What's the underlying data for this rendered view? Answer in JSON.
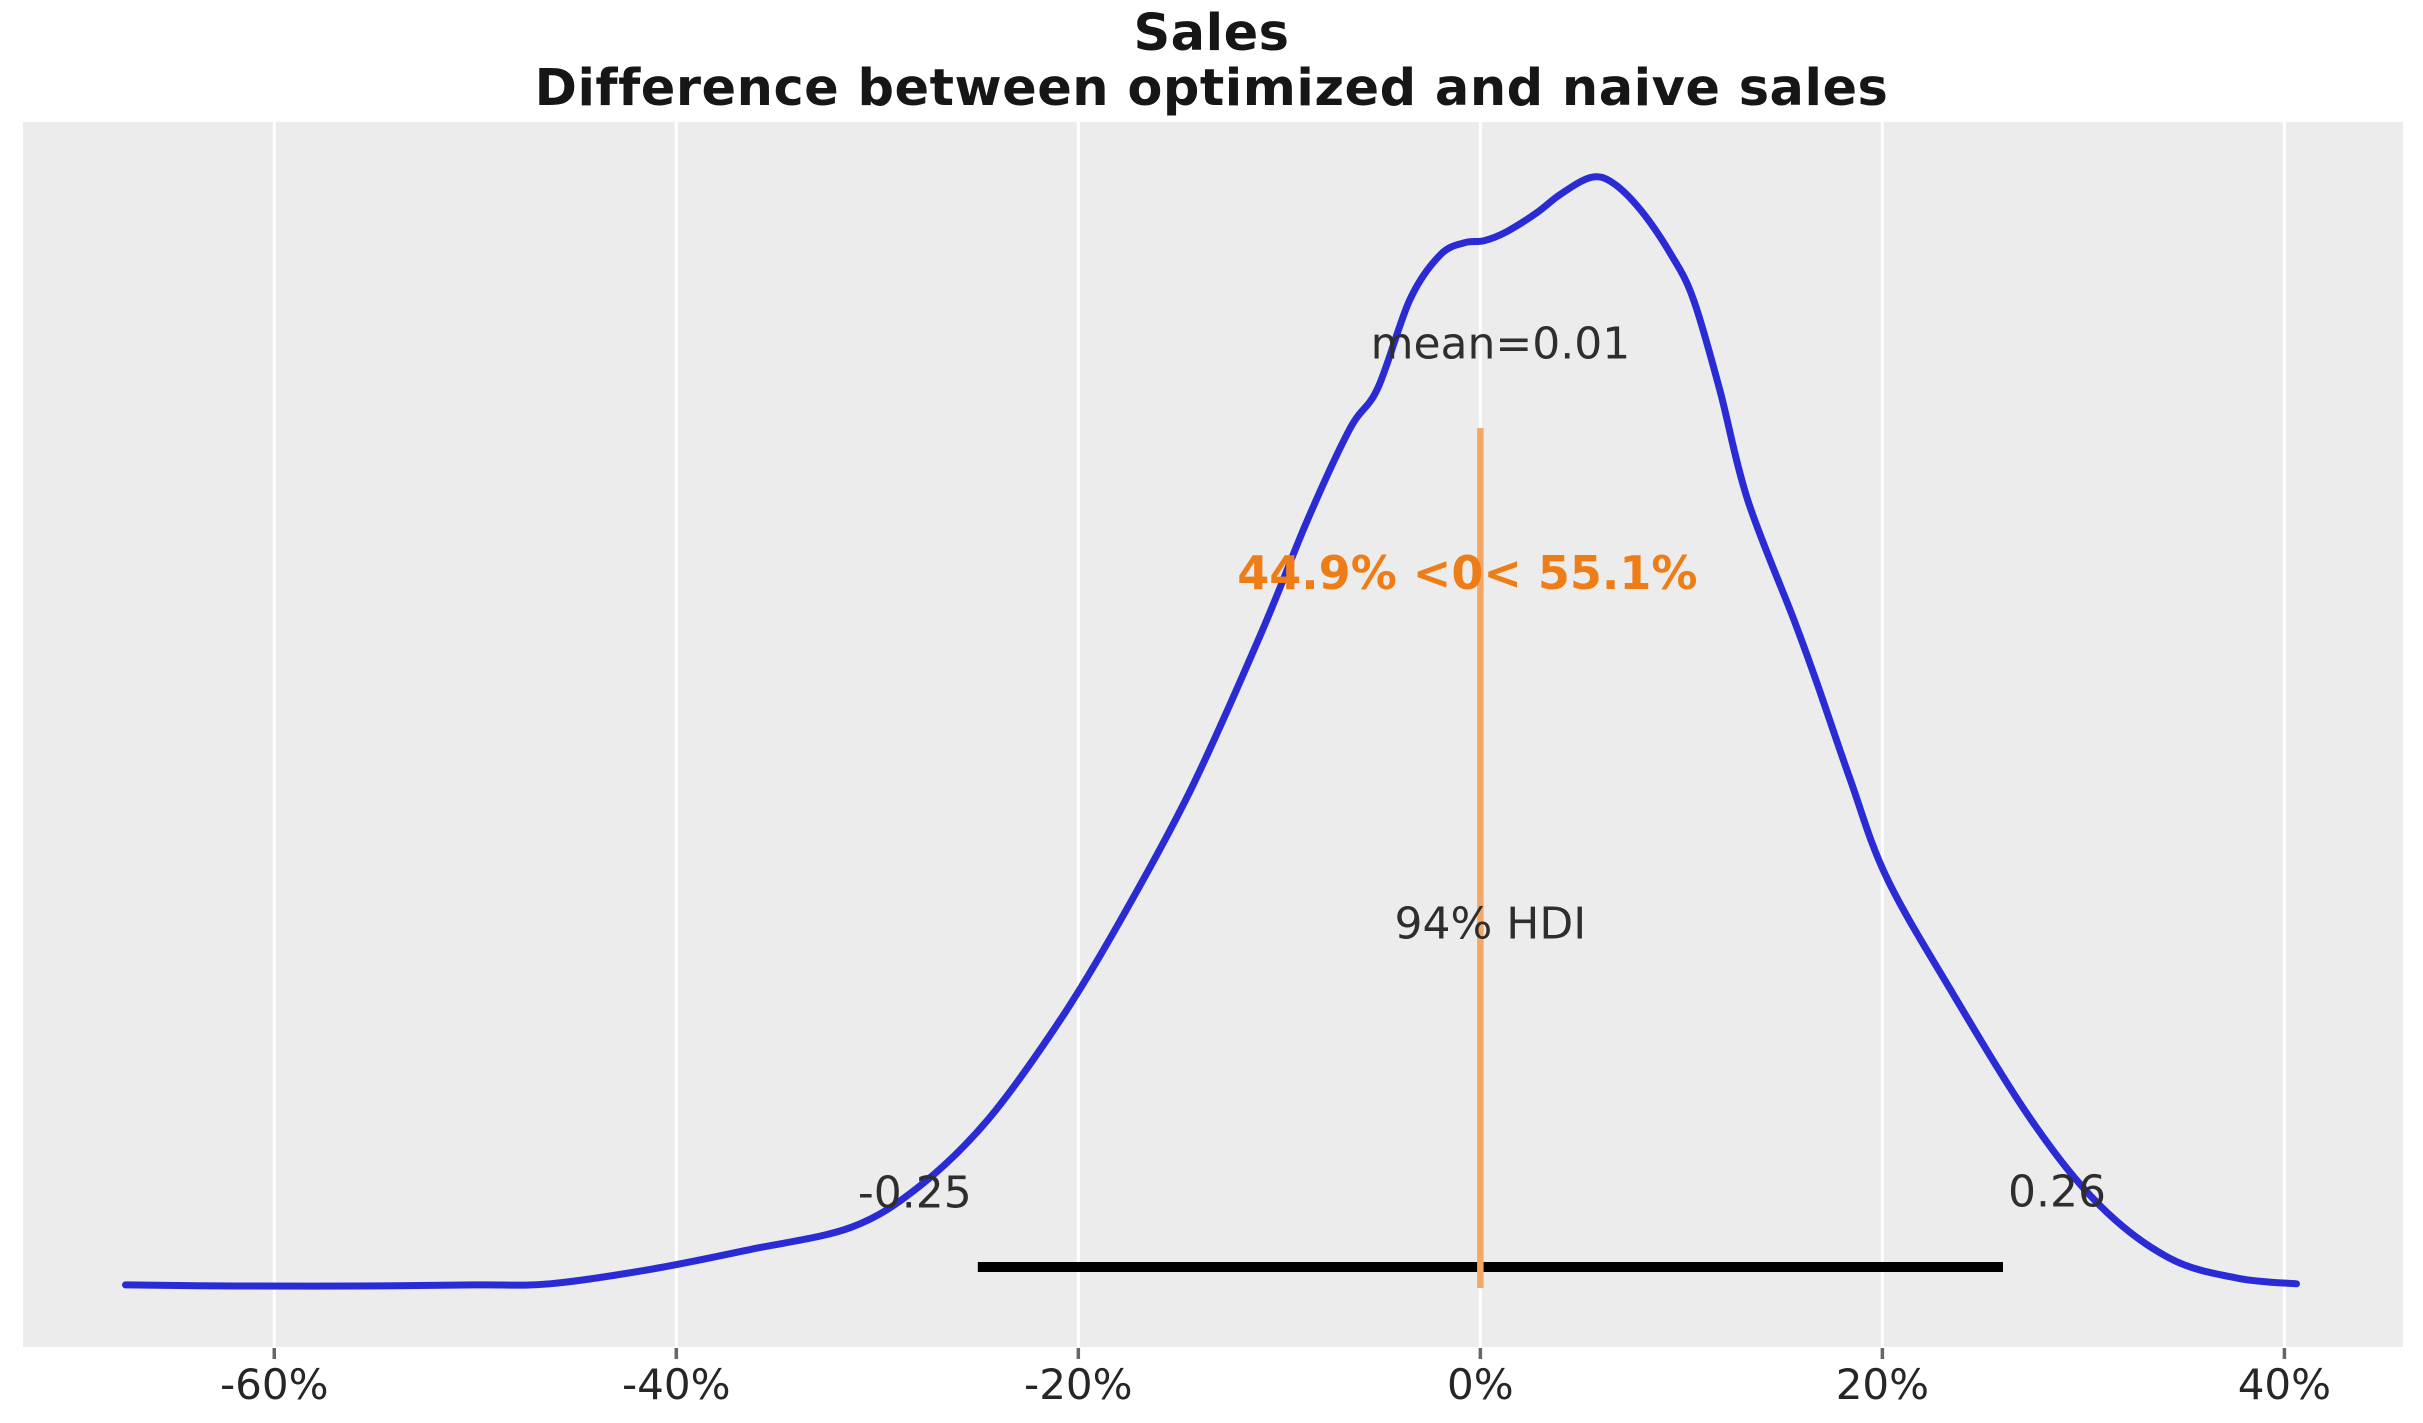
{
  "title": {
    "line1": "Sales",
    "line2": "Difference between optimized and naive sales"
  },
  "chart_data": {
    "type": "line",
    "subtype": "kde-posterior-density",
    "title": "Sales\nDifference between optimized and naive sales",
    "xlabel": "",
    "ylabel": "",
    "xlim_pct": [
      -72.5,
      45.9
    ],
    "grid": "vertical-white-gridlines-on-gray",
    "legend_position": "none",
    "x_ticks": [
      {
        "value": -60,
        "label": "-60%"
      },
      {
        "value": -40,
        "label": "-40%"
      },
      {
        "value": -20,
        "label": "-20%"
      },
      {
        "value": 0,
        "label": "0%"
      },
      {
        "value": 20,
        "label": "20%"
      },
      {
        "value": 40,
        "label": "40%"
      }
    ],
    "curve": {
      "x_pct": [
        -67.4,
        -62,
        -56,
        -50,
        -46.3,
        -41.3,
        -36.3,
        -31.3,
        -27.9,
        -24.5,
        -20.9,
        -17.9,
        -14.4,
        -10.9,
        -8.6,
        -6.5,
        -5.1,
        -3.5,
        -2.0,
        -0.8,
        0.2,
        1.3,
        2.8,
        4.0,
        5.5,
        6.6,
        8.0,
        9.5,
        10.6,
        11.9,
        13.3,
        15.6,
        16.8,
        18.4,
        20.2,
        23.4,
        27.4,
        30.8,
        34.3,
        37.7,
        40.6
      ],
      "density_norm": [
        0.001,
        0.0,
        0.0,
        0.001,
        0.002,
        0.015,
        0.033,
        0.053,
        0.09,
        0.15,
        0.24,
        0.33,
        0.448,
        0.589,
        0.691,
        0.773,
        0.81,
        0.89,
        0.93,
        0.941,
        0.943,
        0.951,
        0.968,
        0.985,
        1.0,
        0.995,
        0.97,
        0.93,
        0.89,
        0.809,
        0.709,
        0.601,
        0.541,
        0.457,
        0.369,
        0.267,
        0.15,
        0.073,
        0.025,
        0.007,
        0.002
      ]
    },
    "annotations": {
      "mean": 0.01,
      "mean_label": "mean=0.01",
      "ref_value": 0,
      "ref_val_label": "44.9% <0< 55.1%",
      "pct_below_ref": 44.9,
      "pct_above_ref": 55.1,
      "hdi_prob": 0.94,
      "hdi_label": "94% HDI",
      "hdi_lower": -0.25,
      "hdi_upper": 0.26,
      "hdi_lower_label": "-0.25",
      "hdi_upper_label": "0.26"
    }
  },
  "colors": {
    "plot_bg": "#ececec",
    "gridline": "#ffffff",
    "tick_mark": "#666666",
    "curve": "#2b2bd6",
    "hdi_line": "#000000",
    "ref_line": "#f5a865",
    "ref_text": "#ee7d18",
    "text": "#2e2e2e",
    "title_text": "#161616"
  }
}
